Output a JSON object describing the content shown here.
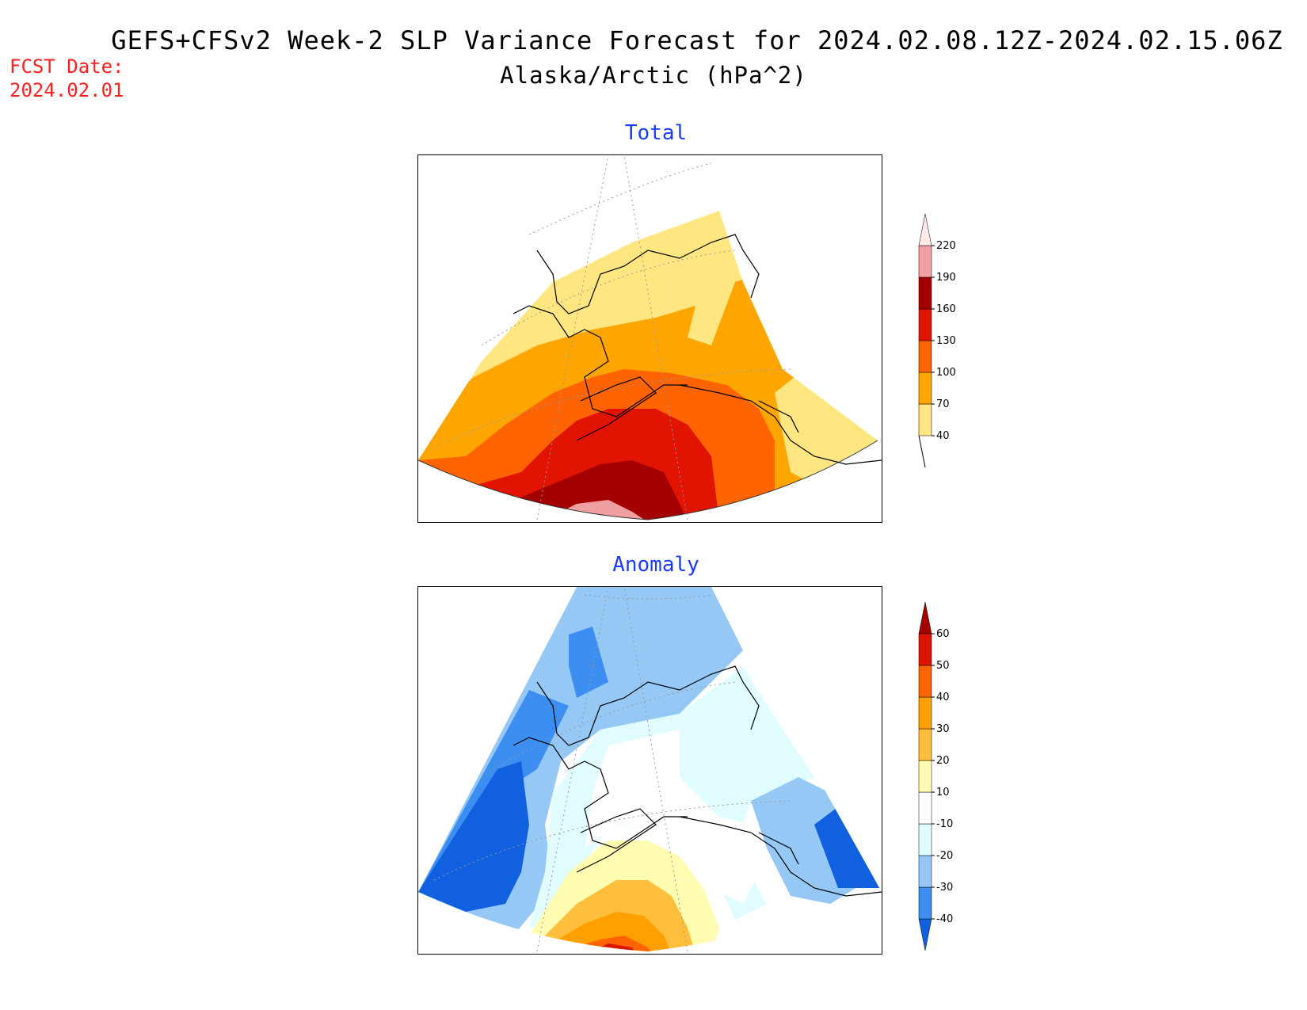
{
  "title": {
    "line1": "GEFS+CFSv2 Week-2 SLP Variance Forecast for 2024.02.08.12Z-2024.02.15.06Z",
    "line2": "Alaska/Arctic (hPa^2)"
  },
  "forecast": {
    "label": "FCST Date:",
    "date": "2024.02.01"
  },
  "panels": [
    {
      "title": "Total",
      "colorbar": {
        "levels": [
          "40",
          "70",
          "100",
          "130",
          "160",
          "190",
          "220"
        ],
        "colors": [
          "#ffe680",
          "#ffa500",
          "#ff6400",
          "#e01400",
          "#a50000",
          "#f0a0a0",
          "#ffe8e8"
        ]
      }
    },
    {
      "title": "Anomaly",
      "colorbar": {
        "levels": [
          "-40",
          "-30",
          "-20",
          "-10",
          "10",
          "20",
          "30",
          "40",
          "50",
          "60"
        ],
        "colors": [
          "#1060e0",
          "#3c8ef0",
          "#96c8f5",
          "#e0fcff",
          "#ffffff",
          "#fffbb0",
          "#ffbe3c",
          "#ffa000",
          "#ff6400",
          "#dc1400",
          "#a50000"
        ]
      }
    }
  ],
  "region": "Alaska/Arctic",
  "units": "hPa^2"
}
